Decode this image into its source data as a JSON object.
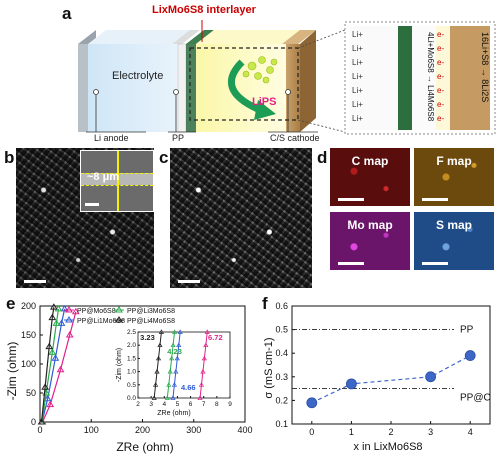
{
  "panel_letters": {
    "a": "a",
    "b": "b",
    "c": "c",
    "d": "d",
    "e": "e",
    "f": "f"
  },
  "panel_a": {
    "interlayer_label": "LixMo6S8 interlayer",
    "electrolyte": "Electrolyte",
    "li_anode": "Li anode",
    "pp": "PP",
    "cathode": "C/S cathode",
    "lips": "LiPS",
    "ion": "Li+",
    "electron": "e-",
    "rxn_left": "4Li+Mo6S8 → Li4Mo6S8",
    "rxn_right": "16Li+S8 → 8Li2S"
  },
  "panel_b": {
    "thickness": "~8 μm"
  },
  "panel_d": {
    "maps": [
      "C map",
      "F map",
      "Mo map",
      "S map"
    ]
  },
  "chart_data": [
    {
      "type": "line",
      "panel": "e",
      "xlabel": "ZRe (ohm)",
      "ylabel": "-Zim (ohm)",
      "xlim": [
        0,
        400
      ],
      "ylim": [
        0,
        200
      ],
      "xticks": [
        "0",
        "100",
        "200",
        "300",
        "400"
      ],
      "yticks": [
        "0",
        "50",
        "100",
        "150",
        "200"
      ],
      "series": [
        {
          "name": "PP@Mo6S8",
          "color": "#e0218a"
        },
        {
          "name": "PP@Li1Mo6S8",
          "color": "#2d5bd8"
        },
        {
          "name": "PP@Li3Mo6S8",
          "color": "#2aaa4a"
        },
        {
          "name": "PP@Li4Mo6S8",
          "color": "#222222"
        }
      ],
      "inset": {
        "xlabel": "ZRe (ohm)",
        "ylabel": "-Zim (ohm)",
        "xlim": [
          2,
          9
        ],
        "ylim": [
          0,
          2.5
        ],
        "xticks": [
          "2",
          "3",
          "4",
          "5",
          "6",
          "7",
          "8",
          "9"
        ],
        "yticks": [
          "0.0",
          "0.5",
          "1.0",
          "1.5",
          "2.0",
          "2.5"
        ],
        "intercepts": [
          {
            "series": "PP@Li4Mo6S8",
            "x": 3.23,
            "label": "3.23"
          },
          {
            "series": "PP@Li3Mo6S8",
            "x": 4.23,
            "label": "4.23"
          },
          {
            "series": "PP@Li1Mo6S8",
            "x": 4.66,
            "label": "4.66"
          },
          {
            "series": "PP@Mo6S8",
            "x": 6.72,
            "label": "6.72"
          }
        ]
      }
    },
    {
      "type": "scatter",
      "panel": "f",
      "xlabel": "x in LixMo6S8",
      "ylabel": "σ (mS cm-1)",
      "xlim": [
        -0.5,
        4.5
      ],
      "ylim": [
        0.1,
        0.6
      ],
      "xticks": [
        "0",
        "1",
        "2",
        "3",
        "4"
      ],
      "yticks": [
        "0.1",
        "0.2",
        "0.3",
        "0.4",
        "0.5",
        "0.6"
      ],
      "x": [
        0,
        1,
        3,
        4
      ],
      "y": [
        0.19,
        0.27,
        0.3,
        0.39
      ],
      "reference_lines": [
        {
          "label": "PP",
          "y": 0.5
        },
        {
          "label": "PP@C",
          "y": 0.25
        }
      ],
      "color": "#3c66c8"
    }
  ]
}
